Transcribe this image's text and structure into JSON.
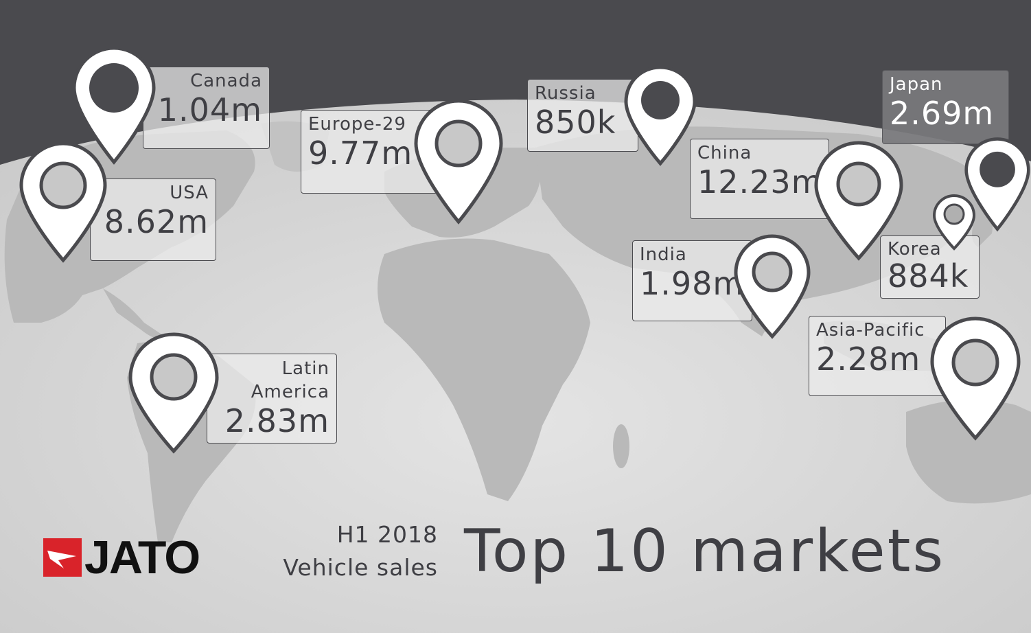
{
  "header": {
    "subtitle_line1": "H1 2018",
    "subtitle_line2": "Vehicle sales",
    "title": "Top 10 markets"
  },
  "brand": {
    "logo_text": "JATO",
    "logo_color": "#d9232a"
  },
  "colors": {
    "background": "#4a4a4e",
    "globe": "#d7d7d7",
    "land": "#b8b8b8",
    "text": "#3f3f44",
    "pin_fill": "#ffffff"
  },
  "markets": [
    {
      "id": "canada",
      "name": "Canada",
      "value": "1.04m"
    },
    {
      "id": "usa",
      "name": "USA",
      "value": "8.62m"
    },
    {
      "id": "europe",
      "name": "Europe-29",
      "value": "9.77m"
    },
    {
      "id": "russia",
      "name": "Russia",
      "value": "850k"
    },
    {
      "id": "china",
      "name": "China",
      "value": "12.23m"
    },
    {
      "id": "japan",
      "name": "Japan",
      "value": "2.69m"
    },
    {
      "id": "korea",
      "name": "Korea",
      "value": "884k"
    },
    {
      "id": "india",
      "name": "India",
      "value": "1.98m"
    },
    {
      "id": "asia-pacific",
      "name": "Asia-Pacific",
      "value": "2.28m"
    },
    {
      "id": "latin-america",
      "name": "Latin America",
      "name_line1": "Latin",
      "name_line2": "America",
      "value": "2.83m"
    }
  ]
}
